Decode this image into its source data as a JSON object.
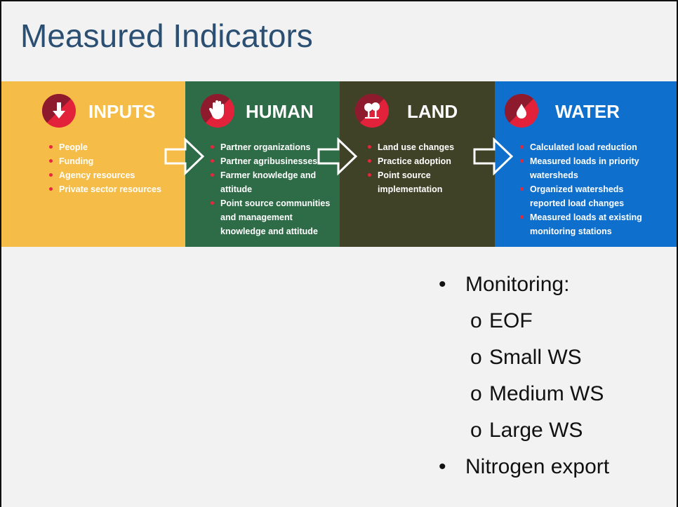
{
  "title": "Measured Indicators",
  "panels": [
    {
      "heading": "INPUTS",
      "items": [
        "People",
        "Funding",
        "Agency resources",
        "Private sector resources"
      ]
    },
    {
      "heading": "HUMAN",
      "items": [
        "Partner organizations",
        "Partner agribusinesses",
        "Farmer knowledge and attitude",
        "Point source communities and management knowledge and attitude"
      ]
    },
    {
      "heading": "LAND",
      "items": [
        "Land use changes",
        "Practice adoption",
        "Point source implementation"
      ]
    },
    {
      "heading": "WATER",
      "items": [
        "Calculated load reduction",
        "Measured loads in priority watersheds",
        "Organized watersheds reported load changes",
        "Measured loads at existing monitoring stations"
      ]
    }
  ],
  "bullets": [
    {
      "text": "Monitoring:",
      "subitems": [
        "EOF",
        "Small WS",
        "Medium WS",
        "Large WS"
      ]
    },
    {
      "text": "Nitrogen export",
      "subitems": []
    }
  ]
}
